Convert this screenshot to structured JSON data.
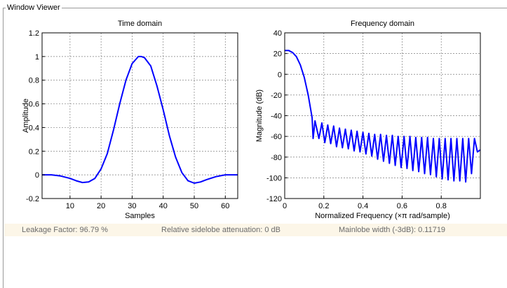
{
  "window": {
    "title": "Window Viewer"
  },
  "status": {
    "leakage": "Leakage Factor: 96.79 %",
    "sidelobe": "Relative sidelobe attenuation: 0 dB",
    "mainlobe": "Mainlobe width (-3dB): 0.11719"
  },
  "colors": {
    "line": "#0000ff",
    "grid": "#7f7f7f",
    "status_bg": "#fcf6e8"
  },
  "chart_data": [
    {
      "type": "line",
      "title": "Time domain",
      "xlabel": "Samples",
      "ylabel": "Amplitude",
      "xlim": [
        1,
        64
      ],
      "ylim": [
        -0.2,
        1.2
      ],
      "xticks": [
        10,
        20,
        30,
        40,
        50,
        60
      ],
      "yticks": [
        -0.2,
        0,
        0.2,
        0.4,
        0.6,
        0.8,
        1,
        1.2
      ],
      "xtick_labels": [
        "10",
        "20",
        "30",
        "40",
        "50",
        "60"
      ],
      "ytick_labels": [
        "-0.2",
        "0",
        "0.2",
        "0.4",
        "0.6",
        "0.8",
        "1",
        "1.2"
      ],
      "grid": true,
      "series": [
        {
          "x": [
            1,
            4,
            7,
            10,
            12,
            14,
            16,
            18,
            20,
            22,
            24,
            26,
            28,
            30,
            32,
            33,
            34,
            36,
            38,
            40,
            42,
            44,
            46,
            48,
            50,
            52,
            54,
            57,
            60,
            64
          ],
          "y": [
            0,
            0,
            -0.01,
            -0.03,
            -0.05,
            -0.065,
            -0.06,
            -0.03,
            0.05,
            0.18,
            0.38,
            0.6,
            0.8,
            0.94,
            1.0,
            1.0,
            0.99,
            0.92,
            0.75,
            0.55,
            0.33,
            0.15,
            0.02,
            -0.05,
            -0.07,
            -0.06,
            -0.04,
            -0.015,
            0,
            0
          ]
        }
      ]
    },
    {
      "type": "line",
      "title": "Frequency domain",
      "xlabel": "Normalized Frequency  (×π rad/sample)",
      "ylabel": "Magnitude (dB)",
      "xlim": [
        0,
        1
      ],
      "ylim": [
        -120,
        40
      ],
      "xticks": [
        0,
        0.2,
        0.4,
        0.6,
        0.8
      ],
      "yticks": [
        -120,
        -100,
        -80,
        -60,
        -40,
        -20,
        0,
        20,
        40
      ],
      "xtick_labels": [
        "0",
        "0.2",
        "0.4",
        "0.6",
        "0.8"
      ],
      "ytick_labels": [
        "-120",
        "-100",
        "-80",
        "-60",
        "-40",
        "-20",
        "0",
        "20",
        "40"
      ],
      "grid": true,
      "series": [
        {
          "x": [
            0,
            0.02,
            0.04,
            0.06,
            0.08,
            0.1,
            0.12,
            0.14,
            0.145,
            0.155,
            0.175,
            0.19,
            0.205,
            0.22,
            0.235,
            0.25,
            0.265,
            0.28,
            0.295,
            0.31,
            0.325,
            0.34,
            0.355,
            0.37,
            0.385,
            0.4,
            0.415,
            0.43,
            0.445,
            0.46,
            0.475,
            0.49,
            0.505,
            0.52,
            0.535,
            0.55,
            0.565,
            0.58,
            0.595,
            0.61,
            0.625,
            0.64,
            0.655,
            0.67,
            0.685,
            0.7,
            0.715,
            0.73,
            0.745,
            0.76,
            0.775,
            0.79,
            0.805,
            0.82,
            0.835,
            0.85,
            0.865,
            0.88,
            0.895,
            0.91,
            0.925,
            0.94,
            0.955,
            0.97,
            0.985,
            1.0
          ],
          "y": [
            23,
            23,
            21,
            17,
            9,
            -3,
            -20,
            -42,
            -62,
            -45,
            -62,
            -47,
            -66,
            -49,
            -67,
            -50,
            -70,
            -52,
            -71,
            -53,
            -72,
            -54,
            -74,
            -55,
            -75,
            -56,
            -77,
            -57,
            -79,
            -58,
            -82,
            -58,
            -84,
            -59,
            -86,
            -59,
            -88,
            -60,
            -90,
            -60,
            -91,
            -60,
            -93,
            -61,
            -94,
            -61,
            -96,
            -61,
            -97,
            -62,
            -99,
            -62,
            -101,
            -62,
            -102,
            -62,
            -103,
            -62,
            -103,
            -62,
            -104,
            -62,
            -96,
            -62,
            -75,
            -73
          ]
        }
      ]
    }
  ]
}
